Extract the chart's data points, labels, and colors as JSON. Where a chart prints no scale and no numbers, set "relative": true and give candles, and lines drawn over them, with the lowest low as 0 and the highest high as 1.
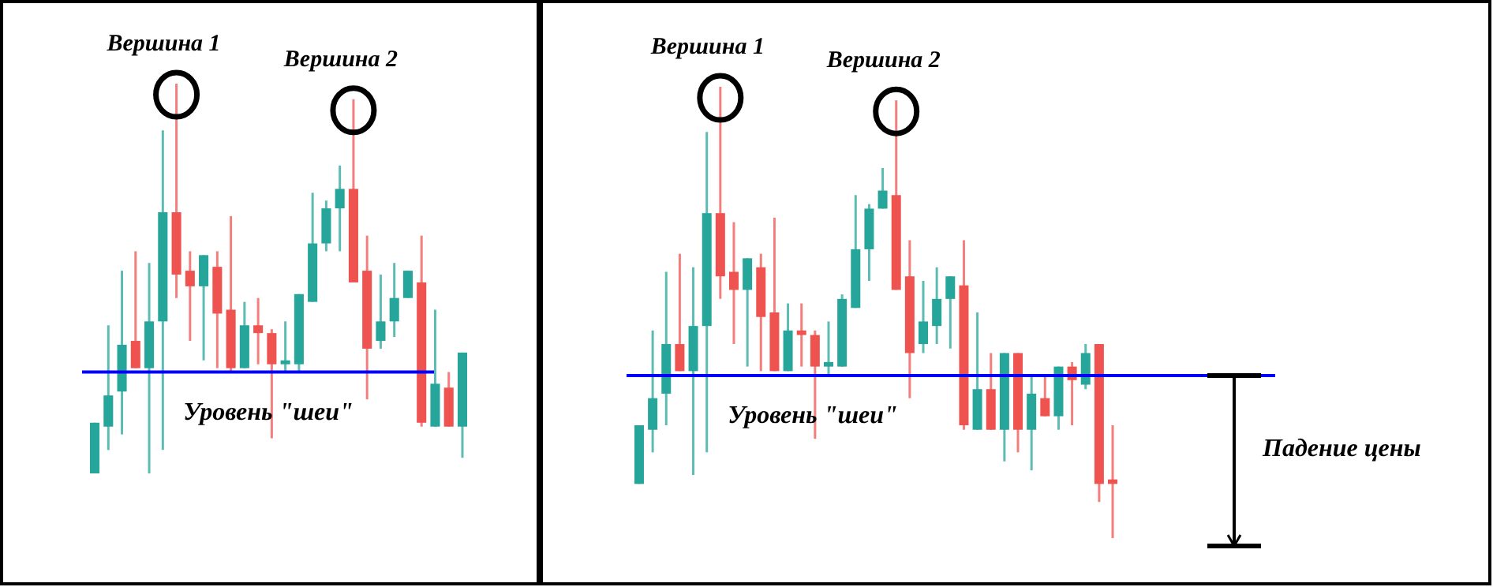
{
  "chart_data": [
    {
      "type": "candlestick",
      "relative": true,
      "categories": [
        null,
        null,
        null,
        null,
        null,
        null,
        null,
        null,
        null,
        null,
        null,
        null,
        null,
        null,
        null,
        null,
        null,
        null,
        null,
        null,
        null,
        null,
        null,
        null,
        null,
        null,
        null,
        null
      ],
      "ohlc": [
        [
          0,
          0.13,
          0,
          0.13
        ],
        [
          0.12,
          0.38,
          0.06,
          0.2
        ],
        [
          0.21,
          0.52,
          0.1,
          0.33
        ],
        [
          0.34,
          0.57,
          0.27,
          0.27
        ],
        [
          0.27,
          0.54,
          0,
          0.39
        ],
        [
          0.39,
          0.88,
          0.06,
          0.67
        ],
        [
          0.67,
          1,
          0.45,
          0.51
        ],
        [
          0.52,
          0.57,
          0.34,
          0.48
        ],
        [
          0.48,
          0.56,
          0.29,
          0.56
        ],
        [
          0.53,
          0.57,
          0.27,
          0.41
        ],
        [
          0.42,
          0.66,
          0.26,
          0.27
        ],
        [
          0.27,
          0.44,
          0.27,
          0.38
        ],
        [
          0.38,
          0.45,
          0.28,
          0.36
        ],
        [
          0.36,
          0.37,
          0.09,
          0.28
        ],
        [
          0.28,
          0.39,
          0.26,
          0.29
        ],
        [
          0.28,
          0.46,
          0.26,
          0.46
        ],
        [
          0.44,
          0.72,
          0.44,
          0.59
        ],
        [
          0.59,
          0.7,
          0.57,
          0.68
        ],
        [
          0.68,
          0.79,
          0.57,
          0.73
        ],
        [
          0.73,
          0.96,
          0.49,
          0.49
        ],
        [
          0.52,
          0.61,
          0.19,
          0.32
        ],
        [
          0.34,
          0.51,
          0.32,
          0.39
        ],
        [
          0.39,
          0.54,
          0.35,
          0.45
        ],
        [
          0.45,
          0.52,
          0.45,
          0.52
        ],
        [
          0.49,
          0.61,
          0.12,
          0.13
        ],
        [
          0.12,
          0.42,
          0.12,
          0.23
        ],
        [
          0.22,
          0.26,
          0.12,
          0.12
        ],
        [
          0.12,
          0.31,
          0.04,
          0.31
        ]
      ],
      "colors": [
        "#26a69a",
        "#26a69a",
        "#26a69a",
        "#ef5350",
        "#26a69a",
        "#26a69a",
        "#ef5350",
        "#ef5350",
        "#26a69a",
        "#ef5350",
        "#ef5350",
        "#26a69a",
        "#ef5350",
        "#ef5350",
        "#26a69a",
        "#26a69a",
        "#26a69a",
        "#26a69a",
        "#26a69a",
        "#ef5350",
        "#ef5350",
        "#26a69a",
        "#26a69a",
        "#26a69a",
        "#ef5350",
        "#26a69a",
        "#ef5350",
        "#26a69a"
      ],
      "ref_lines": [
        {
          "axis": "y",
          "value": 0.26,
          "label": "Уровень \"шеи\"",
          "color": "#0000ff"
        }
      ],
      "annotations": [
        "Вершина 1",
        "Вершина 2"
      ]
    },
    {
      "type": "candlestick",
      "relative": true,
      "categories": [
        null,
        null,
        null,
        null,
        null,
        null,
        null,
        null,
        null,
        null,
        null,
        null,
        null,
        null,
        null,
        null,
        null,
        null,
        null,
        null,
        null,
        null,
        null,
        null,
        null,
        null,
        null,
        null,
        null,
        null,
        null,
        null,
        null,
        null,
        null,
        null
      ],
      "ohlc": [
        [
          0.12,
          0.25,
          0.12,
          0.25
        ],
        [
          0.24,
          0.46,
          0.19,
          0.31
        ],
        [
          0.32,
          0.59,
          0.25,
          0.43
        ],
        [
          0.43,
          0.63,
          0.37,
          0.37
        ],
        [
          0.37,
          0.6,
          0.14,
          0.47
        ],
        [
          0.47,
          0.9,
          0.19,
          0.72
        ],
        [
          0.72,
          1,
          0.53,
          0.58
        ],
        [
          0.59,
          0.7,
          0.43,
          0.55
        ],
        [
          0.55,
          0.62,
          0.38,
          0.62
        ],
        [
          0.6,
          0.63,
          0.37,
          0.49
        ],
        [
          0.5,
          0.71,
          0.37,
          0.37
        ],
        [
          0.37,
          0.52,
          0.37,
          0.46
        ],
        [
          0.46,
          0.52,
          0.38,
          0.45
        ],
        [
          0.45,
          0.46,
          0.22,
          0.38
        ],
        [
          0.38,
          0.48,
          0.36,
          0.39
        ],
        [
          0.38,
          0.54,
          0.38,
          0.53
        ],
        [
          0.51,
          0.76,
          0.51,
          0.64
        ],
        [
          0.64,
          0.74,
          0.57,
          0.73
        ],
        [
          0.73,
          0.82,
          0.73,
          0.77
        ],
        [
          0.76,
          0.97,
          0.55,
          0.55
        ],
        [
          0.58,
          0.66,
          0.31,
          0.41
        ],
        [
          0.43,
          0.57,
          0.41,
          0.48
        ],
        [
          0.47,
          0.6,
          0.43,
          0.53
        ],
        [
          0.53,
          0.58,
          0.42,
          0.58
        ],
        [
          0.56,
          0.66,
          0.24,
          0.25
        ],
        [
          0.24,
          0.5,
          0.24,
          0.33
        ],
        [
          0.33,
          0.41,
          0.24,
          0.24
        ],
        [
          0.24,
          0.41,
          0.17,
          0.41
        ],
        [
          0.41,
          0.41,
          0.19,
          0.24
        ],
        [
          0.24,
          0.36,
          0.15,
          0.32
        ],
        [
          0.31,
          0.36,
          0.27,
          0.27
        ],
        [
          0.27,
          0.38,
          0.24,
          0.38
        ],
        [
          0.38,
          0.39,
          0.25,
          0.35
        ],
        [
          0.34,
          0.43,
          0.33,
          0.41
        ],
        [
          0.43,
          0.43,
          0.08,
          0.12
        ],
        [
          0.13,
          0.25,
          0,
          0.12
        ]
      ],
      "colors": [
        "#26a69a",
        "#26a69a",
        "#26a69a",
        "#ef5350",
        "#26a69a",
        "#26a69a",
        "#ef5350",
        "#ef5350",
        "#26a69a",
        "#ef5350",
        "#ef5350",
        "#26a69a",
        "#ef5350",
        "#ef5350",
        "#26a69a",
        "#26a69a",
        "#26a69a",
        "#26a69a",
        "#26a69a",
        "#ef5350",
        "#ef5350",
        "#26a69a",
        "#26a69a",
        "#26a69a",
        "#ef5350",
        "#26a69a",
        "#ef5350",
        "#26a69a",
        "#ef5350",
        "#26a69a",
        "#ef5350",
        "#26a69a",
        "#ef5350",
        "#26a69a",
        "#ef5350",
        "#ef5350"
      ],
      "ref_lines": [
        {
          "axis": "y",
          "value": 0.36,
          "label": "Уровень \"шеи\"",
          "color": "#0000ff"
        }
      ],
      "annotations": [
        "Вершина 1",
        "Вершина 2",
        "Падение цены"
      ]
    }
  ]
}
